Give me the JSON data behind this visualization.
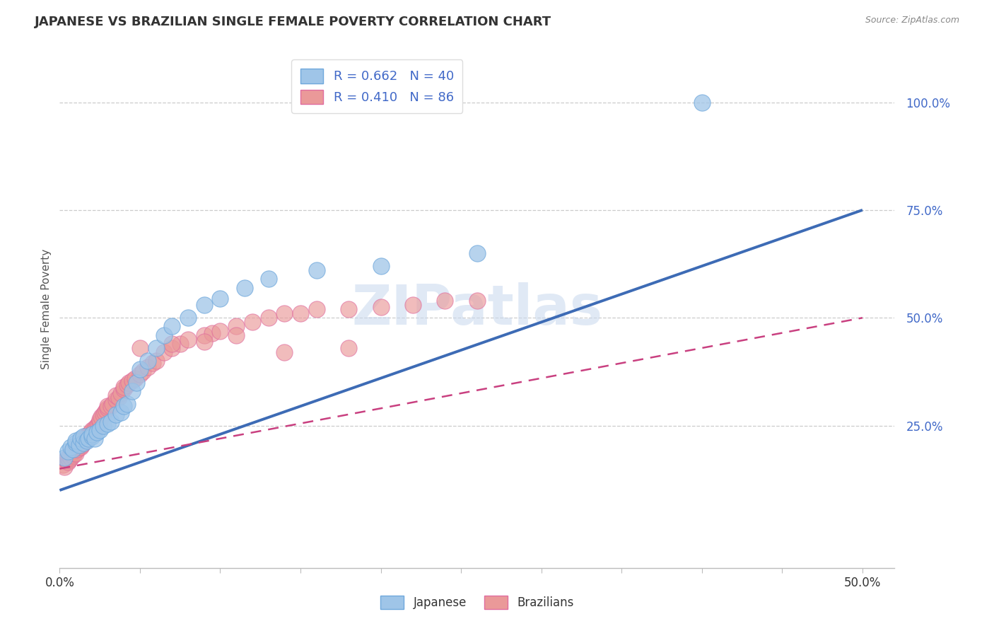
{
  "title": "JAPANESE VS BRAZILIAN SINGLE FEMALE POVERTY CORRELATION CHART",
  "source_text": "Source: ZipAtlas.com",
  "ylabel": "Single Female Poverty",
  "watermark": "ZIPatlas",
  "xlim": [
    0.0,
    0.52
  ],
  "ylim": [
    -0.08,
    1.12
  ],
  "yticks": [
    0.25,
    0.5,
    0.75,
    1.0
  ],
  "japanese_R": 0.662,
  "japanese_N": 40,
  "brazilian_R": 0.41,
  "brazilian_N": 86,
  "japanese_color": "#9fc5e8",
  "japanese_edge_color": "#6fa8dc",
  "brazilian_color": "#ea9999",
  "brazilian_edge_color": "#e06c9f",
  "japanese_line_color": "#3d6bb5",
  "brazilian_line_color": "#c94080",
  "japanese_scatter_x": [
    0.003,
    0.005,
    0.007,
    0.008,
    0.01,
    0.01,
    0.012,
    0.013,
    0.015,
    0.015,
    0.017,
    0.018,
    0.02,
    0.02,
    0.022,
    0.023,
    0.025,
    0.027,
    0.03,
    0.032,
    0.035,
    0.038,
    0.04,
    0.042,
    0.045,
    0.048,
    0.05,
    0.055,
    0.06,
    0.065,
    0.07,
    0.08,
    0.09,
    0.1,
    0.115,
    0.13,
    0.16,
    0.2,
    0.26,
    0.4
  ],
  "japanese_scatter_y": [
    0.175,
    0.19,
    0.2,
    0.195,
    0.21,
    0.215,
    0.205,
    0.22,
    0.21,
    0.225,
    0.215,
    0.22,
    0.225,
    0.23,
    0.22,
    0.235,
    0.24,
    0.25,
    0.255,
    0.26,
    0.275,
    0.28,
    0.295,
    0.3,
    0.33,
    0.35,
    0.38,
    0.4,
    0.43,
    0.46,
    0.48,
    0.5,
    0.53,
    0.545,
    0.57,
    0.59,
    0.61,
    0.62,
    0.65,
    1.0
  ],
  "brazilian_scatter_x": [
    0.002,
    0.003,
    0.004,
    0.005,
    0.005,
    0.006,
    0.006,
    0.007,
    0.007,
    0.008,
    0.008,
    0.009,
    0.009,
    0.01,
    0.01,
    0.011,
    0.012,
    0.012,
    0.013,
    0.013,
    0.014,
    0.014,
    0.015,
    0.015,
    0.016,
    0.016,
    0.017,
    0.018,
    0.018,
    0.019,
    0.02,
    0.02,
    0.021,
    0.022,
    0.022,
    0.023,
    0.024,
    0.025,
    0.025,
    0.026,
    0.027,
    0.028,
    0.029,
    0.03,
    0.03,
    0.032,
    0.033,
    0.035,
    0.035,
    0.037,
    0.038,
    0.04,
    0.04,
    0.042,
    0.043,
    0.045,
    0.047,
    0.05,
    0.052,
    0.055,
    0.058,
    0.06,
    0.065,
    0.07,
    0.075,
    0.08,
    0.09,
    0.095,
    0.1,
    0.11,
    0.12,
    0.13,
    0.14,
    0.15,
    0.16,
    0.18,
    0.2,
    0.22,
    0.24,
    0.26,
    0.05,
    0.07,
    0.09,
    0.11,
    0.14,
    0.18
  ],
  "brazilian_scatter_y": [
    0.16,
    0.155,
    0.17,
    0.165,
    0.175,
    0.17,
    0.18,
    0.175,
    0.185,
    0.18,
    0.19,
    0.185,
    0.195,
    0.185,
    0.2,
    0.195,
    0.2,
    0.205,
    0.2,
    0.21,
    0.205,
    0.215,
    0.21,
    0.22,
    0.215,
    0.225,
    0.22,
    0.225,
    0.23,
    0.235,
    0.23,
    0.24,
    0.235,
    0.24,
    0.245,
    0.25,
    0.255,
    0.26,
    0.265,
    0.27,
    0.275,
    0.28,
    0.285,
    0.29,
    0.295,
    0.295,
    0.3,
    0.31,
    0.32,
    0.315,
    0.325,
    0.335,
    0.34,
    0.345,
    0.35,
    0.355,
    0.36,
    0.37,
    0.375,
    0.385,
    0.395,
    0.4,
    0.42,
    0.43,
    0.44,
    0.45,
    0.46,
    0.465,
    0.47,
    0.48,
    0.49,
    0.5,
    0.51,
    0.51,
    0.52,
    0.52,
    0.525,
    0.53,
    0.54,
    0.54,
    0.43,
    0.44,
    0.445,
    0.46,
    0.42,
    0.43
  ],
  "japanese_line_x": [
    0.0,
    0.5
  ],
  "japanese_line_y": [
    0.1,
    0.75
  ],
  "brazilian_line_x": [
    0.0,
    0.5
  ],
  "brazilian_line_y": [
    0.15,
    0.5
  ]
}
